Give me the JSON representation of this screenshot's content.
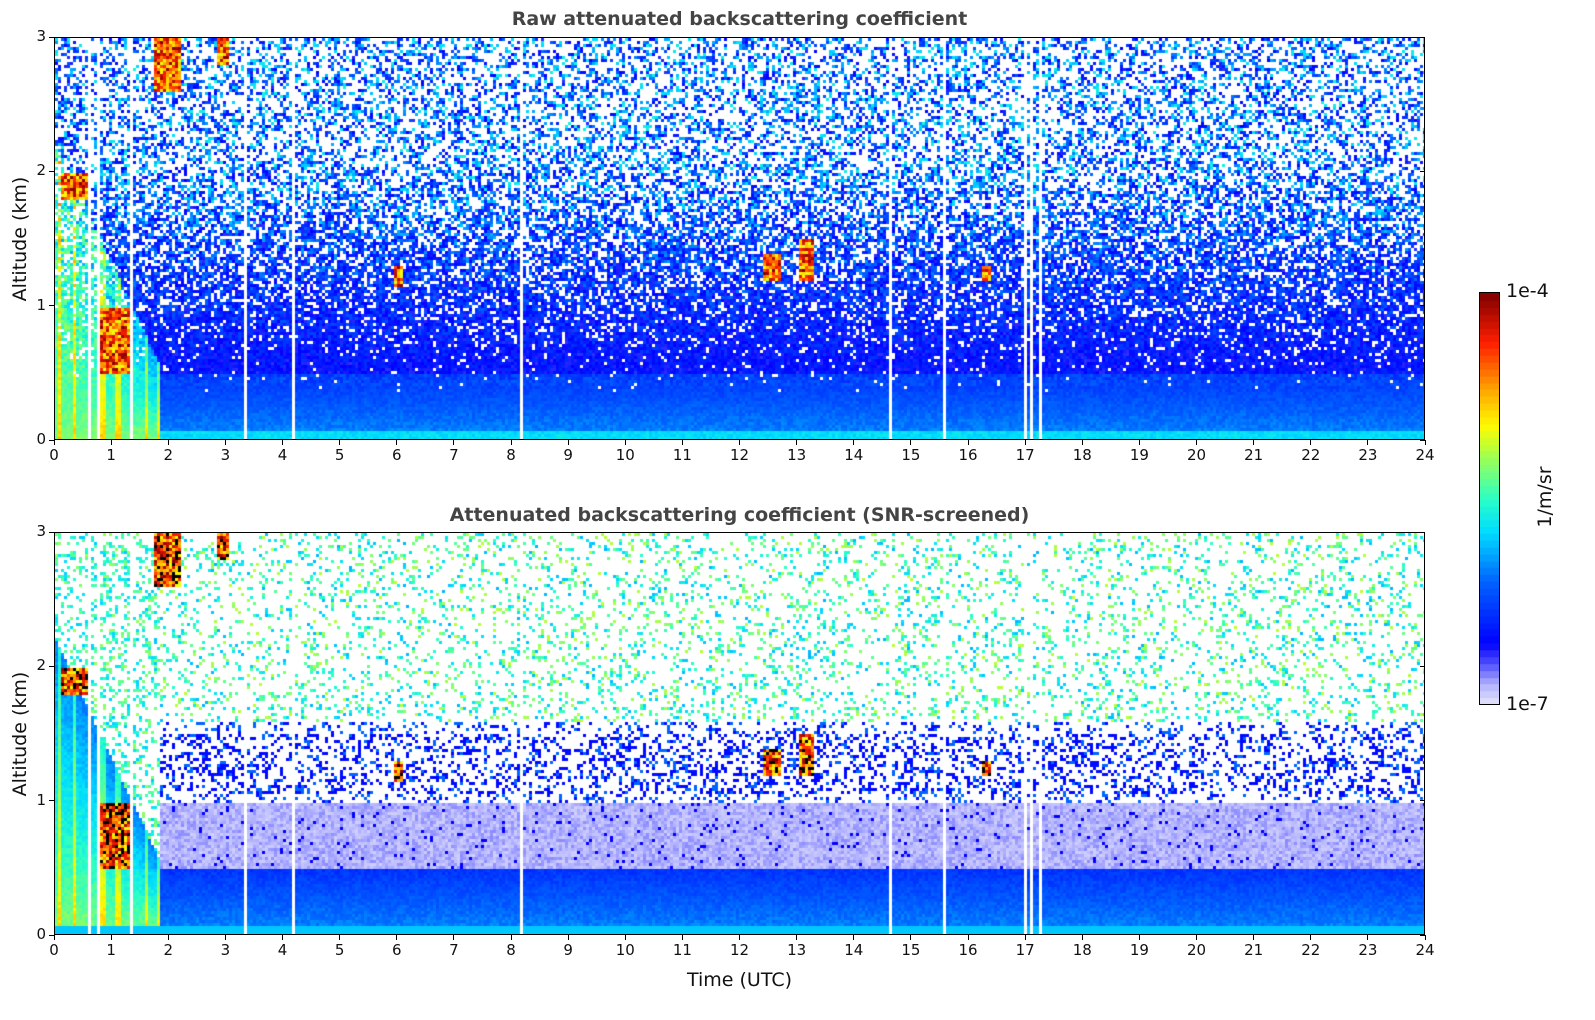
{
  "chart_data": [
    {
      "type": "heatmap",
      "title": "Raw attenuated backscattering coefficient",
      "xlabel": "Time (UTC)",
      "ylabel": "Altitude (km)",
      "xlim": [
        0,
        24
      ],
      "ylim": [
        0,
        3
      ],
      "xticks": [
        "0",
        "1",
        "2",
        "3",
        "4",
        "5",
        "6",
        "7",
        "8",
        "9",
        "10",
        "11",
        "12",
        "13",
        "14",
        "15",
        "16",
        "17",
        "18",
        "19",
        "20",
        "21",
        "22",
        "23",
        "24"
      ],
      "yticks": [
        "0",
        "1",
        "2",
        "3"
      ],
      "screened": false,
      "features": [
        {
          "name": "aerosol layer",
          "time": [
            0,
            1.8
          ],
          "altitude": [
            0,
            2.3
          ]
        },
        {
          "name": "cloud",
          "time": [
            0.1,
            0.6
          ],
          "altitude": [
            1.8,
            2.0
          ]
        },
        {
          "name": "cloud",
          "time": [
            0.7,
            1.3
          ],
          "altitude": [
            0.5,
            1.0
          ]
        },
        {
          "name": "cloud",
          "time": [
            1.7,
            2.2
          ],
          "altitude": [
            2.6,
            3.0
          ]
        },
        {
          "name": "cloud",
          "time": [
            2.8,
            3.0
          ],
          "altitude": [
            2.8,
            3.0
          ]
        },
        {
          "name": "cloud",
          "time": [
            5.9,
            6.1
          ],
          "altitude": [
            1.15,
            1.3
          ]
        },
        {
          "name": "cloud",
          "time": [
            12.4,
            12.7
          ],
          "altitude": [
            1.2,
            1.4
          ]
        },
        {
          "name": "cloud",
          "time": [
            13.0,
            13.3
          ],
          "altitude": [
            1.2,
            1.5
          ]
        },
        {
          "name": "cloud",
          "time": [
            16.2,
            16.4
          ],
          "altitude": [
            1.2,
            1.3
          ]
        }
      ],
      "gaps_time": [
        0.6,
        0.75,
        1.33,
        3.3,
        4.15,
        8.15,
        14.6,
        15.55,
        17.0,
        17.1,
        17.25
      ]
    },
    {
      "type": "heatmap",
      "title": "Attenuated backscattering coefficient (SNR-screened)",
      "xlabel": "Time (UTC)",
      "ylabel": "Altitude (km)",
      "xlim": [
        0,
        24
      ],
      "ylim": [
        0,
        3
      ],
      "xticks": [
        "0",
        "1",
        "2",
        "3",
        "4",
        "5",
        "6",
        "7",
        "8",
        "9",
        "10",
        "11",
        "12",
        "13",
        "14",
        "15",
        "16",
        "17",
        "18",
        "19",
        "20",
        "21",
        "22",
        "23",
        "24"
      ],
      "yticks": [
        "0",
        "1",
        "2",
        "3"
      ],
      "screened": true
    }
  ],
  "colorbar": {
    "label": "1/m/sr",
    "min_label": "1e-7",
    "max_label": "1e-4",
    "scale": "log",
    "range": [
      1e-07,
      0.0001
    ]
  }
}
